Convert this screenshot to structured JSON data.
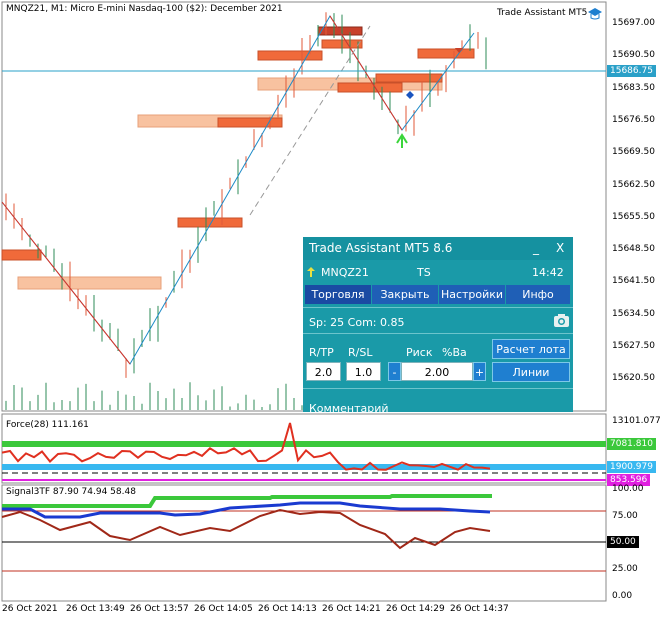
{
  "main_chart": {
    "title": "MNQZ21, M1:  Micro E-mini Nasdaq-100 ($2): December 2021",
    "indicator_label": "Trade Assistant MT5",
    "price_axis": [
      "15697.00",
      "15690.50",
      "15683.50",
      "15676.50",
      "15669.50",
      "15662.50",
      "15655.50",
      "15648.50",
      "15641.50",
      "15634.50",
      "15627.50",
      "15620.50"
    ],
    "current_price": "15686.75",
    "colors": {
      "bull": "#2e8b57",
      "bear": "#e05a3a",
      "line": "#1e8bc8",
      "zone_dark": "#f06a3a",
      "zone_light": "#f8c2a0"
    }
  },
  "force_panel": {
    "title": "Force(28) 111.161",
    "axis_top": "13101.077",
    "level_green": "7081.810",
    "level_blue": "1900.979",
    "level_magenta": "853.596"
  },
  "signal_panel": {
    "title": "Signal3TF 87.90 74.94 58.48",
    "axis": [
      "100.00",
      "75.00",
      "50.00",
      "25.00",
      "0.00"
    ],
    "level_tag": "50.00"
  },
  "time_axis": [
    "26 Oct 2021",
    "26 Oct 13:49",
    "26 Oct 13:57",
    "26 Oct 14:05",
    "26 Oct 14:13",
    "26 Oct 14:21",
    "26 Oct 14:29",
    "26 Oct 14:37"
  ],
  "panel": {
    "title": "Trade Assistant MT5 8.6",
    "minimize": "_",
    "close": "X",
    "symbol": "MNQZ21",
    "ts": "TS",
    "time": "14:42",
    "tabs": [
      "Торговля",
      "Закрыть",
      "Настройки",
      "Инфо"
    ],
    "spread": "Sp: 25  Com: 0.85",
    "labels": {
      "tp": "R/TP",
      "sl": "R/SL",
      "risk": "Риск",
      "pct": "%Ba"
    },
    "tp_value": "2.0",
    "sl_value": "1.0",
    "minus": "-",
    "plus": "+",
    "risk_value": "2.00",
    "lot_button": "Расчет лота",
    "lines_button": "Линии",
    "comment": "Комментарий"
  }
}
